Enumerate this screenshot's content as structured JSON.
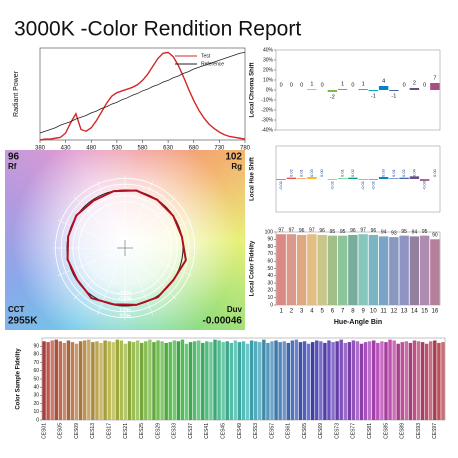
{
  "title": "3000K -Color Rendition Report",
  "chart_data": [
    {
      "type": "line",
      "y_label": "Radiant Power",
      "x": [
        380,
        390,
        400,
        410,
        420,
        430,
        440,
        450,
        460,
        470,
        480,
        490,
        500,
        510,
        520,
        530,
        540,
        550,
        560,
        570,
        580,
        590,
        600,
        610,
        620,
        630,
        640,
        650,
        660,
        670,
        680,
        690,
        700,
        710,
        720,
        730,
        740,
        750,
        760,
        770,
        780
      ],
      "xlim": [
        380,
        780
      ],
      "xticks": [
        380,
        430,
        480,
        530,
        580,
        630,
        680,
        730,
        780
      ],
      "ylim": [
        0,
        1.05
      ],
      "legend": "top-right",
      "series": [
        {
          "name": "Test",
          "color": "#d62728",
          "values": [
            0,
            0.01,
            0.01,
            0.02,
            0.03,
            0.08,
            0.2,
            0.3,
            0.12,
            0.1,
            0.14,
            0.22,
            0.32,
            0.42,
            0.5,
            0.54,
            0.56,
            0.58,
            0.6,
            0.63,
            0.68,
            0.75,
            0.84,
            0.93,
            0.99,
            1.0,
            0.95,
            0.85,
            0.72,
            0.58,
            0.45,
            0.34,
            0.25,
            0.18,
            0.13,
            0.09,
            0.06,
            0.04,
            0.03,
            0.02,
            0.01
          ]
        },
        {
          "name": "Reference",
          "color": "#222222",
          "values": [
            0.08,
            0.1,
            0.12,
            0.14,
            0.17,
            0.19,
            0.21,
            0.24,
            0.26,
            0.28,
            0.31,
            0.33,
            0.36,
            0.38,
            0.41,
            0.43,
            0.46,
            0.48,
            0.51,
            0.53,
            0.56,
            0.58,
            0.61,
            0.63,
            0.66,
            0.68,
            0.71,
            0.73,
            0.76,
            0.78,
            0.81,
            0.83,
            0.85,
            0.87,
            0.89,
            0.91,
            0.93,
            0.95,
            0.97,
            0.99,
            1.0
          ]
        }
      ]
    },
    {
      "type": "bar",
      "y_label": "Local Chroma Shift",
      "values": [
        0,
        0,
        0,
        1,
        0,
        -2,
        1,
        0,
        1,
        -1,
        4,
        -1,
        0,
        2,
        0,
        7
      ],
      "colors": [
        "#e62828",
        "#e74b4b",
        "#fb812e",
        "#ffb529",
        "#cbca46",
        "#7eb94c",
        "#41c06d",
        "#009c7c",
        "#16bcb0",
        "#00a4bf",
        "#0085c3",
        "#3b62aa",
        "#4568ae",
        "#6a4e85",
        "#9d69a1",
        "#a74f81"
      ],
      "ylim": [
        -40,
        40
      ],
      "yticks": [
        {
          "value": -40,
          "label": "-40%"
        },
        {
          "value": -30,
          "label": "-30%"
        },
        {
          "value": -20,
          "label": "-20%"
        },
        {
          "value": -10,
          "label": "-10%"
        },
        {
          "value": 0,
          "label": "0%"
        },
        {
          "value": 10,
          "label": "10%"
        },
        {
          "value": 20,
          "label": "20%"
        },
        {
          "value": 30,
          "label": "30%"
        },
        {
          "value": 40,
          "label": "40%"
        }
      ]
    },
    {
      "type": "bar",
      "y_label": "Local Hue Shift",
      "values": [
        -0.01,
        0.02,
        0.01,
        0.03,
        0,
        -0.01,
        0.01,
        0.02,
        -0.01,
        -0.01,
        0.03,
        0.01,
        0.02,
        0.04,
        -0.03,
        0
      ],
      "value_labels": [
        "-0.01",
        "0.02",
        "0.01",
        "0.03",
        "0.00",
        "-0.01",
        "0.01",
        "0.02",
        "-0.01",
        "-0.01",
        "0.03",
        "0.01",
        "0.02",
        "0.04",
        "-0.03",
        "0.00"
      ],
      "colors": [
        "#e62828",
        "#e74b4b",
        "#fb812e",
        "#ffb529",
        "#cbca46",
        "#7eb94c",
        "#41c06d",
        "#009c7c",
        "#16bcb0",
        "#00a4bf",
        "#0085c3",
        "#3b62aa",
        "#4568ae",
        "#6a4e85",
        "#9d69a1",
        "#a74f81"
      ],
      "ylim": [
        -0.5,
        0.5
      ]
    },
    {
      "type": "bar",
      "y_label": "Local Color Fidelity",
      "x_label": "Hue-Angle Bin",
      "categories": [
        "1",
        "2",
        "3",
        "4",
        "5",
        "6",
        "7",
        "8",
        "9",
        "10",
        "11",
        "12",
        "13",
        "14",
        "15",
        "16"
      ],
      "values": [
        97,
        97,
        96,
        97,
        96,
        95,
        95,
        96,
        97,
        96,
        94,
        93,
        95,
        94,
        95,
        90
      ],
      "colors": [
        "#d98a84",
        "#d99a8c",
        "#e0a880",
        "#e2bd84",
        "#c9c68a",
        "#a2bf8a",
        "#8cc59a",
        "#78ad9c",
        "#86c6bd",
        "#7ab5c4",
        "#7aa3c8",
        "#8a98c0",
        "#8f95c3",
        "#93809f",
        "#ad8cb0",
        "#b37f99"
      ],
      "ylim": [
        0,
        100
      ],
      "yticks": [
        0,
        10,
        20,
        30,
        40,
        50,
        60,
        70,
        80,
        90,
        100
      ]
    },
    {
      "type": "vector",
      "rf": 96,
      "rf_label": "Rf",
      "rg": 102,
      "rg_label": "Rg",
      "cct_label": "CCT",
      "cct": "2955K",
      "duv_label": "Duv",
      "duv": -0.00046,
      "ring_labels": [
        "-20%",
        "-10%",
        "10%",
        "20%"
      ],
      "color": "#b01020"
    },
    {
      "type": "bar",
      "y_label": "Color Sample Fidelity",
      "ylim": [
        0,
        100
      ],
      "yticks": [
        0,
        10,
        20,
        30,
        40,
        50,
        60,
        70,
        80,
        90
      ],
      "categories": [
        "CES01",
        null,
        null,
        null,
        "CES05",
        null,
        null,
        null,
        "CES09",
        null,
        null,
        null,
        "CES13",
        null,
        null,
        null,
        "CES17",
        null,
        null,
        null,
        "CES21",
        null,
        null,
        null,
        "CES25",
        null,
        null,
        null,
        "CES29",
        null,
        null,
        null,
        "CES33",
        null,
        null,
        null,
        "CES37",
        null,
        null,
        null,
        "CES41",
        null,
        null,
        null,
        "CES45",
        null,
        null,
        null,
        "CES49",
        null,
        null,
        null,
        "CES53",
        null,
        null,
        null,
        "CES57",
        null,
        null,
        null,
        "CES61",
        null,
        null,
        null,
        "CES65",
        null,
        null,
        null,
        "CES69",
        null,
        null,
        null,
        "CES73",
        null,
        null,
        null,
        "CES77",
        null,
        null,
        null,
        "CES81",
        null,
        null,
        null,
        "CES85",
        null,
        null,
        null,
        "CES89",
        null,
        null,
        null,
        "CES93",
        null,
        null,
        null,
        "CES97",
        null,
        null
      ],
      "values": [
        96,
        95,
        97,
        98,
        96,
        94,
        97,
        95,
        93,
        96,
        97,
        98,
        95,
        96,
        94,
        97,
        96,
        95,
        98,
        97,
        93,
        96,
        95,
        97,
        94,
        96,
        98,
        95,
        97,
        96,
        94,
        95,
        97,
        96,
        98,
        93,
        95,
        96,
        97,
        94,
        96,
        95,
        98,
        97,
        95,
        96,
        94,
        97,
        95,
        96,
        93,
        97,
        96,
        95,
        98,
        94,
        96,
        97,
        95,
        96,
        94,
        97,
        98,
        95,
        96,
        93,
        95,
        97,
        96,
        94,
        97,
        95,
        96,
        98,
        94,
        95,
        97,
        96,
        93,
        95,
        96,
        97,
        94,
        96,
        95,
        98,
        97,
        93,
        95,
        96,
        94,
        97,
        96,
        95,
        93,
        96,
        97,
        94,
        95
      ]
    }
  ]
}
